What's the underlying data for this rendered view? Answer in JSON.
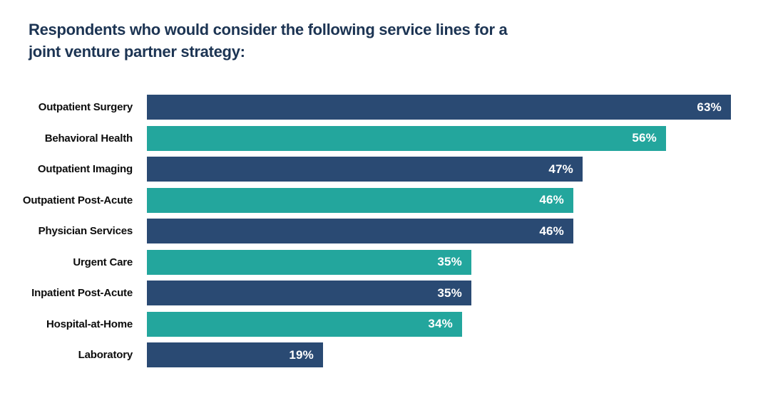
{
  "chart_data": {
    "type": "bar",
    "orientation": "horizontal",
    "title_lines": [
      "Respondents who would consider the following service lines for a",
      "joint venture partner strategy:"
    ],
    "categories": [
      "Outpatient Surgery",
      "Behavioral Health",
      "Outpatient Imaging",
      "Outpatient Post-Acute",
      "Physician Services",
      "Urgent Care",
      "Inpatient Post-Acute",
      "Hospital-at-Home",
      "Laboratory"
    ],
    "values": [
      63,
      56,
      47,
      46,
      46,
      35,
      35,
      34,
      19
    ],
    "value_suffix": "%",
    "value_labels": [
      "63%",
      "56%",
      "47%",
      "46%",
      "46%",
      "35%",
      "35%",
      "34%",
      "19%"
    ],
    "palette": {
      "navy": "#2a4a73",
      "teal": "#23a69d",
      "title_text": "#1c3453",
      "category_text": "#0d0d0d",
      "value_text": "#ffffff"
    },
    "bar_palette_keys": [
      "navy",
      "teal",
      "navy",
      "teal",
      "navy",
      "teal",
      "navy",
      "teal",
      "navy"
    ],
    "xlim": [
      0,
      100
    ],
    "grid": "off",
    "legend": "none",
    "value_label_position": "inside-end"
  }
}
